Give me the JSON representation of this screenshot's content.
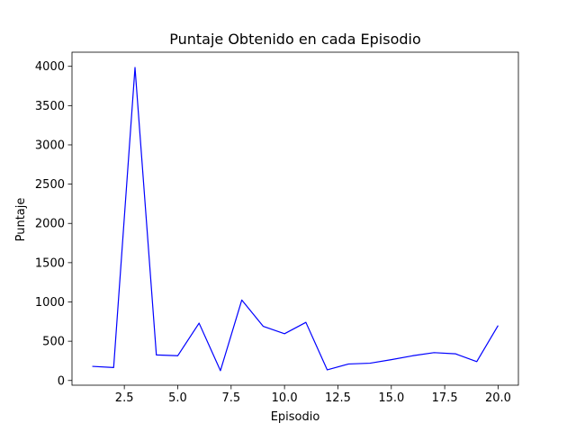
{
  "chart_data": {
    "type": "line",
    "title": "Puntaje Obtenido en cada Episodio",
    "xlabel": "Episodio",
    "ylabel": "Puntaje",
    "x": [
      1,
      2,
      3,
      4,
      5,
      6,
      7,
      8,
      9,
      10,
      11,
      12,
      13,
      14,
      15,
      16,
      17,
      18,
      19,
      20
    ],
    "series": [
      {
        "values": [
          180,
          165,
          3985,
          325,
          315,
          730,
          125,
          1025,
          690,
          595,
          740,
          135,
          210,
          220,
          265,
          315,
          355,
          340,
          240,
          700
        ],
        "color": "#0000ff"
      }
    ],
    "xlim": [
      0.05,
      20.95
    ],
    "ylim": [
      -60,
      4180
    ],
    "x_ticks": [
      2.5,
      5.0,
      7.5,
      10.0,
      12.5,
      15.0,
      17.5,
      20.0
    ],
    "x_tick_labels": [
      "2.5",
      "5.0",
      "7.5",
      "10.0",
      "12.5",
      "15.0",
      "17.5",
      "20.0"
    ],
    "y_ticks": [
      0,
      500,
      1000,
      1500,
      2000,
      2500,
      3000,
      3500,
      4000
    ],
    "y_tick_labels": [
      "0",
      "500",
      "1000",
      "1500",
      "2000",
      "2500",
      "3000",
      "3500",
      "4000"
    ],
    "grid": false,
    "legend": "none"
  }
}
